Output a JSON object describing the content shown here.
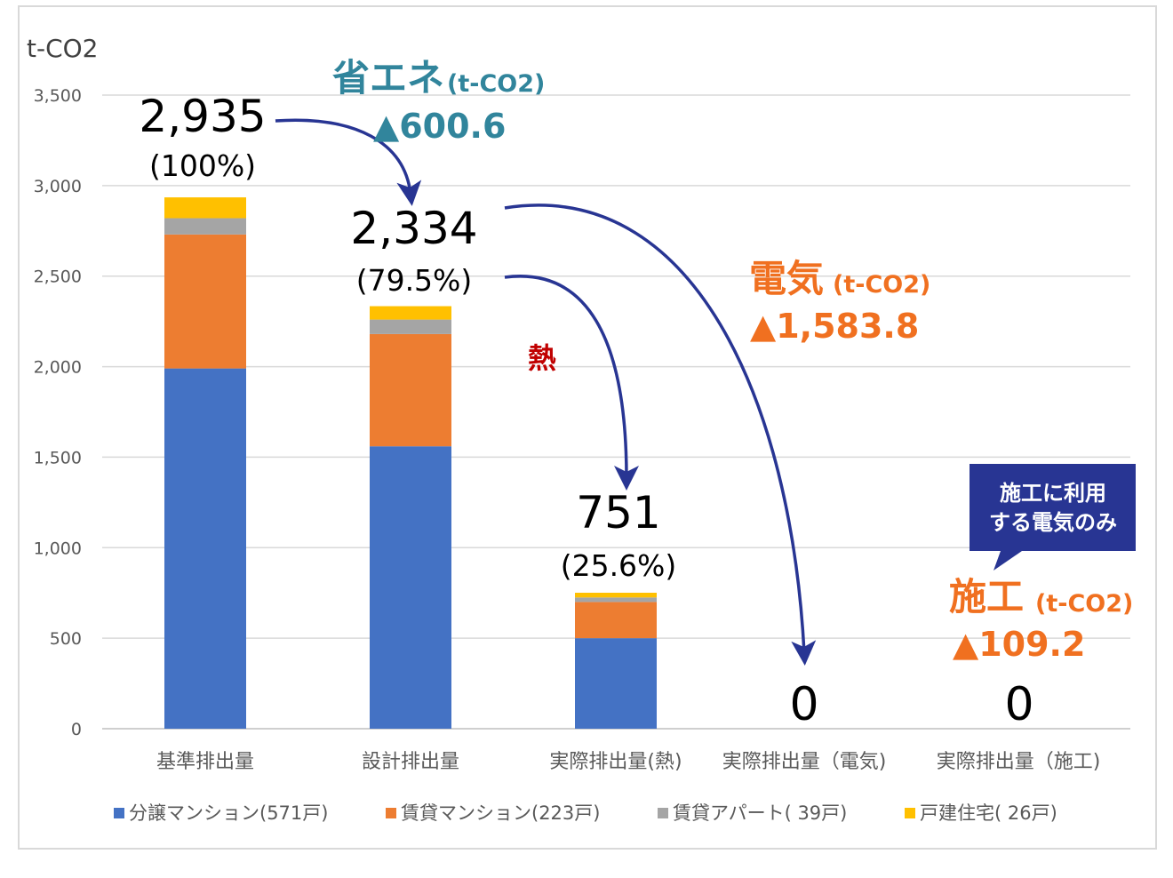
{
  "chart_data": {
    "type": "bar",
    "stacked": true,
    "ylabel": "t-CO2",
    "ylim": [
      0,
      3500
    ],
    "yticks": [
      "3,500",
      "3,000",
      "2,500",
      "2,000",
      "1,500",
      "1,000",
      "500",
      "0"
    ],
    "ytick_values": [
      3500,
      3000,
      2500,
      2000,
      1500,
      1000,
      500,
      0
    ],
    "grid": true,
    "legend_position": "bottom",
    "categories": [
      "基準排出量",
      "設計排出量",
      "実際排出量(熱)",
      "実際排出量（電気)",
      "実際排出量（施工)"
    ],
    "series": [
      {
        "name": "分譲マンション(571戸)",
        "color": "#4472c4",
        "values": [
          1990,
          1560,
          500,
          0,
          0
        ]
      },
      {
        "name": "賃貸マンション(223戸)",
        "color": "#ed7d31",
        "values": [
          740,
          620,
          200,
          0,
          0
        ]
      },
      {
        "name": "賃貸アパート( 39戸)",
        "color": "#a5a5a5",
        "values": [
          90,
          80,
          25,
          0,
          0
        ]
      },
      {
        "name": "戸建住宅( 26戸)",
        "color": "#ffc000",
        "values": [
          115,
          74,
          26,
          0,
          0
        ]
      }
    ],
    "totals": [
      {
        "value": "2,935",
        "pct": "(100%)"
      },
      {
        "value": "2,334",
        "pct": "(79.5%)"
      },
      {
        "value": "751",
        "pct": "(25.6%)"
      },
      {
        "value": "0",
        "pct": ""
      },
      {
        "value": "0",
        "pct": ""
      }
    ],
    "annotations": {
      "saving": {
        "title": "省エネ",
        "unit": "(t-CO2)",
        "value": "▲600.6",
        "color": "#31859c"
      },
      "heat": {
        "title": "熱",
        "color": "#c00000"
      },
      "electric": {
        "title": "電気",
        "unit": "(t-CO2)",
        "value": "▲1,583.8",
        "color": "#f07020"
      },
      "construction": {
        "title": "施工",
        "unit": "(t-CO2)",
        "value": "▲109.2",
        "color": "#f07020"
      },
      "callout": {
        "lines": [
          "施工に利用",
          "する電気のみ"
        ],
        "bg": "#283593",
        "color": "#ffffff"
      },
      "arrow_color": "#283593"
    }
  }
}
